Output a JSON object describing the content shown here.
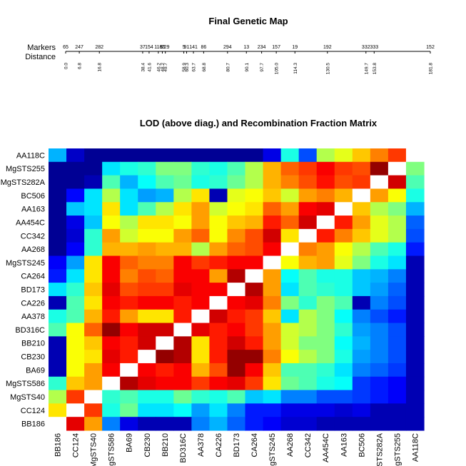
{
  "chart_data": [
    {
      "type": "genetic_map",
      "title": "Final Genetic Map",
      "row_labels": [
        "Markers",
        "Distance"
      ],
      "markers": [
        {
          "label": "65",
          "distance": 0.0
        },
        {
          "label": "247",
          "distance": 6.8
        },
        {
          "label": "282",
          "distance": 16.8
        },
        {
          "label": "37",
          "distance": 38.4
        },
        {
          "label": "154",
          "distance": 41.6
        },
        {
          "label": "118",
          "distance": 46.2
        },
        {
          "label": "60",
          "distance": 48.2
        },
        {
          "label": "229",
          "distance": 49.7
        },
        {
          "label": "5",
          "distance": 58.9
        },
        {
          "label": "91",
          "distance": 60.3
        },
        {
          "label": "141",
          "distance": 63.7
        },
        {
          "label": "86",
          "distance": 68.8
        },
        {
          "label": "294",
          "distance": 80.7
        },
        {
          "label": "13",
          "distance": 90.1
        },
        {
          "label": "234",
          "distance": 97.7
        },
        {
          "label": "157",
          "distance": 105.0
        },
        {
          "label": "19",
          "distance": 114.3
        },
        {
          "label": "192",
          "distance": 130.5
        },
        {
          "label": "332",
          "distance": 149.7
        },
        {
          "label": "333",
          "distance": 153.8
        },
        {
          "label": "152",
          "distance": 181.8
        }
      ]
    },
    {
      "type": "heatmap",
      "title": "LOD (above diag.) and Recombination Fraction Matrix",
      "x_labels": [
        "BB186",
        "CC124",
        "MgSTS40",
        "MgSTS586",
        "BA69",
        "CB230",
        "BB210",
        "BD316C",
        "AA378",
        "CA226",
        "BD173",
        "CA264",
        "MgSTS245",
        "AA268",
        "CC342",
        "AA454C",
        "AA163",
        "BC506",
        "MgSTS282A",
        "MgSTS255",
        "AA118C"
      ],
      "y_labels_top_to_bottom": [
        "AA118C",
        "MgSTS255",
        "MgSTS282A",
        "BC506",
        "AA163",
        "AA454C",
        "CC342",
        "AA268",
        "MgSTS245",
        "CA264",
        "BD173",
        "CA226",
        "AA378",
        "BD316C",
        "BB210",
        "CB230",
        "BA69",
        "MgSTS586",
        "MgSTS40",
        "CC124",
        "BB186"
      ],
      "colorscale": "jet (dark blue = low, dark red = high)",
      "value_range": [
        0,
        1
      ],
      "grid": false,
      "values": [
        [
          0.3,
          0.07,
          0.02,
          0.02,
          0.02,
          0.02,
          0.02,
          0.02,
          0.02,
          0.02,
          0.02,
          0.02,
          0.1,
          0.4,
          0.2,
          0.55,
          0.6,
          0.68,
          0.75,
          0.82,
          null
        ],
        [
          0.02,
          0.02,
          0.02,
          0.35,
          0.4,
          0.42,
          0.5,
          0.5,
          0.42,
          0.4,
          0.45,
          0.55,
          0.7,
          0.78,
          0.82,
          0.88,
          0.82,
          0.8,
          0.98,
          null,
          0.5
        ],
        [
          0.02,
          0.02,
          0.05,
          0.45,
          0.3,
          0.38,
          0.45,
          0.48,
          0.4,
          0.42,
          0.48,
          0.55,
          0.7,
          0.75,
          0.8,
          0.86,
          0.8,
          0.82,
          null,
          0.92,
          0.45
        ],
        [
          0.02,
          0.13,
          0.35,
          0.55,
          0.35,
          0.28,
          0.3,
          0.55,
          0.65,
          0.05,
          0.6,
          0.62,
          0.68,
          0.58,
          0.72,
          0.75,
          0.7,
          null,
          0.72,
          0.62,
          0.4
        ],
        [
          0.02,
          0.32,
          0.35,
          0.65,
          0.35,
          0.45,
          0.55,
          0.65,
          0.72,
          0.58,
          0.62,
          0.65,
          0.78,
          0.72,
          0.88,
          0.9,
          null,
          0.68,
          0.55,
          0.5,
          0.3
        ],
        [
          0.02,
          0.1,
          0.32,
          0.62,
          0.55,
          0.65,
          0.65,
          0.62,
          0.72,
          0.62,
          0.68,
          0.7,
          0.85,
          0.78,
          0.92,
          null,
          0.85,
          0.72,
          0.6,
          0.55,
          0.22
        ],
        [
          0.02,
          0.08,
          0.42,
          0.72,
          0.58,
          0.62,
          0.62,
          0.72,
          0.78,
          0.62,
          0.74,
          0.8,
          0.92,
          0.65,
          null,
          0.85,
          0.75,
          0.68,
          0.6,
          0.55,
          0.2
        ],
        [
          0.02,
          0.12,
          0.42,
          0.7,
          0.7,
          0.72,
          0.7,
          0.7,
          0.55,
          0.72,
          0.78,
          0.8,
          0.88,
          null,
          0.75,
          0.72,
          0.62,
          0.55,
          0.45,
          0.4,
          0.15
        ],
        [
          0.12,
          0.28,
          0.65,
          0.88,
          0.78,
          0.75,
          0.75,
          0.88,
          0.82,
          0.85,
          0.88,
          0.88,
          null,
          0.62,
          0.7,
          0.72,
          0.6,
          0.5,
          0.4,
          0.35,
          0.05
        ],
        [
          0.15,
          0.35,
          0.65,
          0.88,
          0.75,
          0.8,
          0.78,
          0.88,
          0.88,
          0.72,
          0.95,
          null,
          0.72,
          0.38,
          0.45,
          0.4,
          0.4,
          0.32,
          0.3,
          0.25,
          0.05
        ],
        [
          0.35,
          0.42,
          0.68,
          0.9,
          0.8,
          0.82,
          0.82,
          0.9,
          0.88,
          0.88,
          null,
          0.95,
          0.72,
          0.35,
          0.45,
          0.42,
          0.4,
          0.32,
          0.28,
          0.22,
          0.05
        ],
        [
          0.05,
          0.45,
          0.65,
          0.88,
          0.85,
          0.88,
          0.88,
          0.85,
          0.88,
          null,
          0.88,
          0.9,
          0.75,
          0.5,
          0.42,
          0.5,
          0.45,
          0.05,
          0.25,
          0.2,
          0.05
        ],
        [
          0.4,
          0.45,
          0.7,
          0.85,
          0.72,
          0.65,
          0.65,
          0.85,
          null,
          0.92,
          0.85,
          0.82,
          0.68,
          0.35,
          0.55,
          0.5,
          0.38,
          0.25,
          0.2,
          0.15,
          0.05
        ],
        [
          0.45,
          0.62,
          0.78,
          0.98,
          0.88,
          0.92,
          0.92,
          null,
          0.9,
          0.85,
          0.88,
          0.82,
          0.72,
          0.58,
          0.55,
          0.5,
          0.42,
          0.28,
          0.25,
          0.2,
          0.05
        ],
        [
          0.05,
          0.62,
          0.68,
          0.88,
          0.85,
          0.92,
          null,
          0.95,
          0.65,
          0.85,
          0.92,
          0.85,
          0.72,
          0.58,
          0.5,
          0.5,
          0.38,
          0.3,
          0.25,
          0.2,
          0.05
        ],
        [
          0.05,
          0.62,
          0.65,
          0.9,
          0.85,
          null,
          0.98,
          0.95,
          0.65,
          0.85,
          0.98,
          0.98,
          0.75,
          0.62,
          0.55,
          0.5,
          0.4,
          0.28,
          0.25,
          0.2,
          0.05
        ],
        [
          0.05,
          0.62,
          0.72,
          0.88,
          null,
          0.88,
          0.85,
          0.88,
          0.7,
          0.8,
          0.98,
          0.88,
          0.68,
          0.45,
          0.45,
          0.42,
          0.35,
          0.25,
          0.22,
          0.18,
          0.05
        ],
        [
          0.42,
          0.68,
          0.72,
          null,
          0.95,
          0.9,
          0.88,
          0.88,
          0.82,
          0.88,
          0.9,
          0.82,
          0.65,
          0.48,
          0.45,
          0.4,
          0.38,
          0.18,
          0.15,
          0.12,
          0.05
        ],
        [
          0.55,
          0.82,
          null,
          0.42,
          0.45,
          0.4,
          0.4,
          0.48,
          0.42,
          0.4,
          0.45,
          0.32,
          0.35,
          0.25,
          0.25,
          0.2,
          0.2,
          0.18,
          0.15,
          0.12,
          0.05
        ],
        [
          0.65,
          null,
          0.82,
          0.4,
          0.48,
          0.35,
          0.35,
          0.38,
          0.28,
          0.35,
          0.25,
          0.15,
          0.15,
          0.1,
          0.1,
          0.1,
          0.08,
          0.1,
          0.05,
          0.05,
          0.05
        ],
        [
          null,
          0.9,
          0.72,
          0.25,
          0.1,
          0.05,
          0.05,
          0.05,
          0.25,
          0.3,
          0.22,
          0.15,
          0.12,
          0.08,
          0.08,
          0.05,
          0.05,
          0.05,
          0.05,
          0.05,
          0.05
        ]
      ]
    }
  ]
}
